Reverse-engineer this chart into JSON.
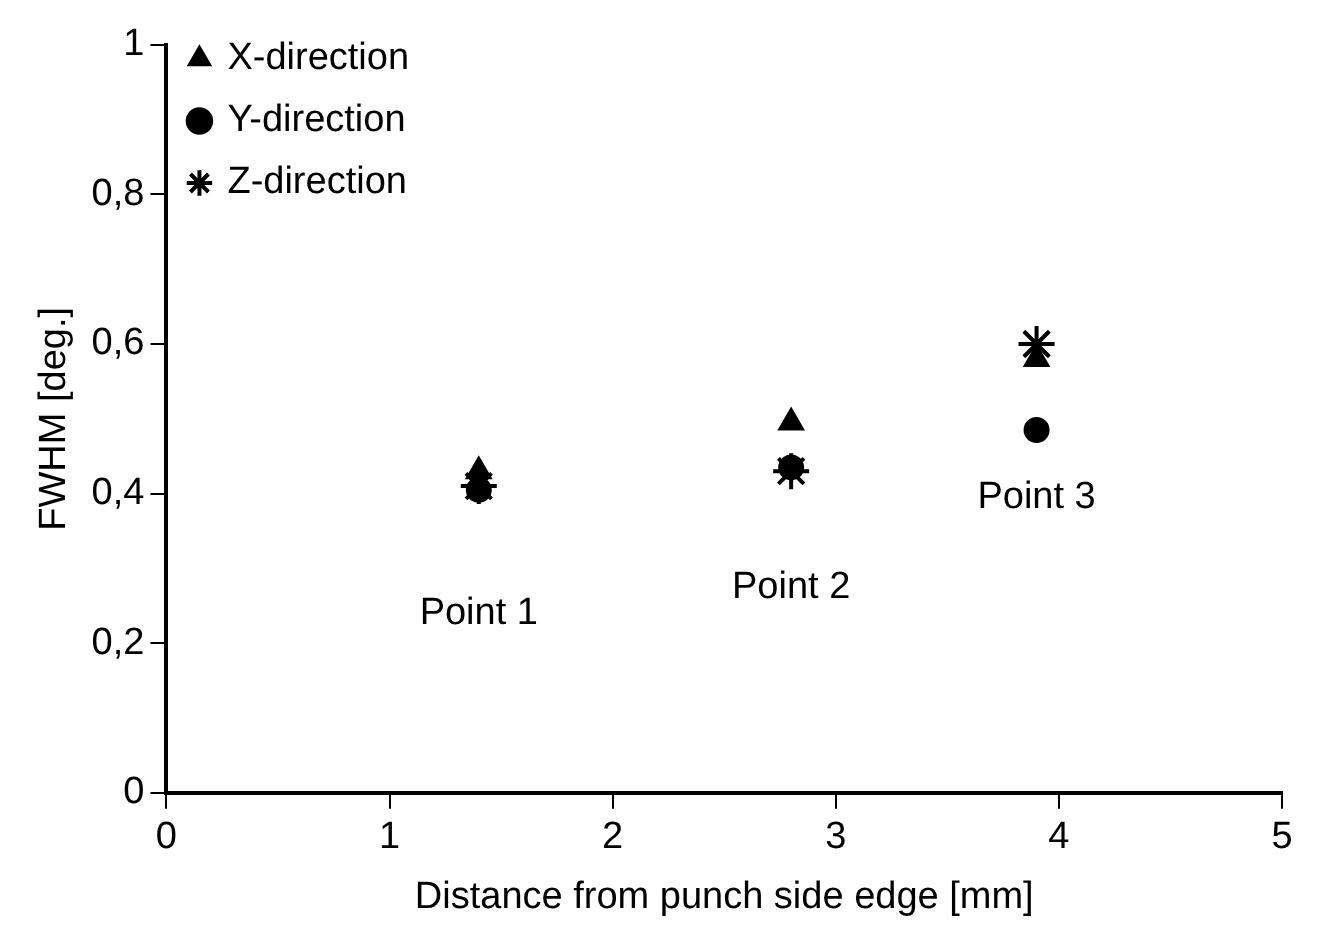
{
  "chart_data": {
    "type": "scatter",
    "xlabel": "Distance from punch side edge [mm]",
    "ylabel": "FWHM [deg.]",
    "x": [
      1.4,
      2.8,
      3.9
    ],
    "series": [
      {
        "name": "X-direction",
        "color": "#000000",
        "marker": "triangle",
        "values": [
          0.43,
          0.495,
          0.58
        ]
      },
      {
        "name": "Y-direction",
        "color": "#000000",
        "marker": "circle",
        "values": [
          0.405,
          0.435,
          0.485
        ]
      },
      {
        "name": "Z-direction",
        "color": "#000000",
        "marker": "cross",
        "values": [
          0.41,
          0.43,
          0.6
        ]
      }
    ],
    "xlim": [
      0,
      5
    ],
    "xticks": [
      0,
      1,
      2,
      3,
      4,
      5
    ],
    "ylim": [
      0,
      1
    ],
    "yticks": [
      0,
      {
        "value": 0.2,
        "label": "0,2"
      },
      {
        "value": 0.4,
        "label": "0,4"
      },
      {
        "value": 0.6,
        "label": "0,6"
      },
      {
        "value": 0.8,
        "label": "0,8"
      },
      1
    ],
    "grid": false,
    "legend": "top left",
    "annotations": [
      "Point 1",
      "Point 2",
      "Point 3"
    ]
  }
}
